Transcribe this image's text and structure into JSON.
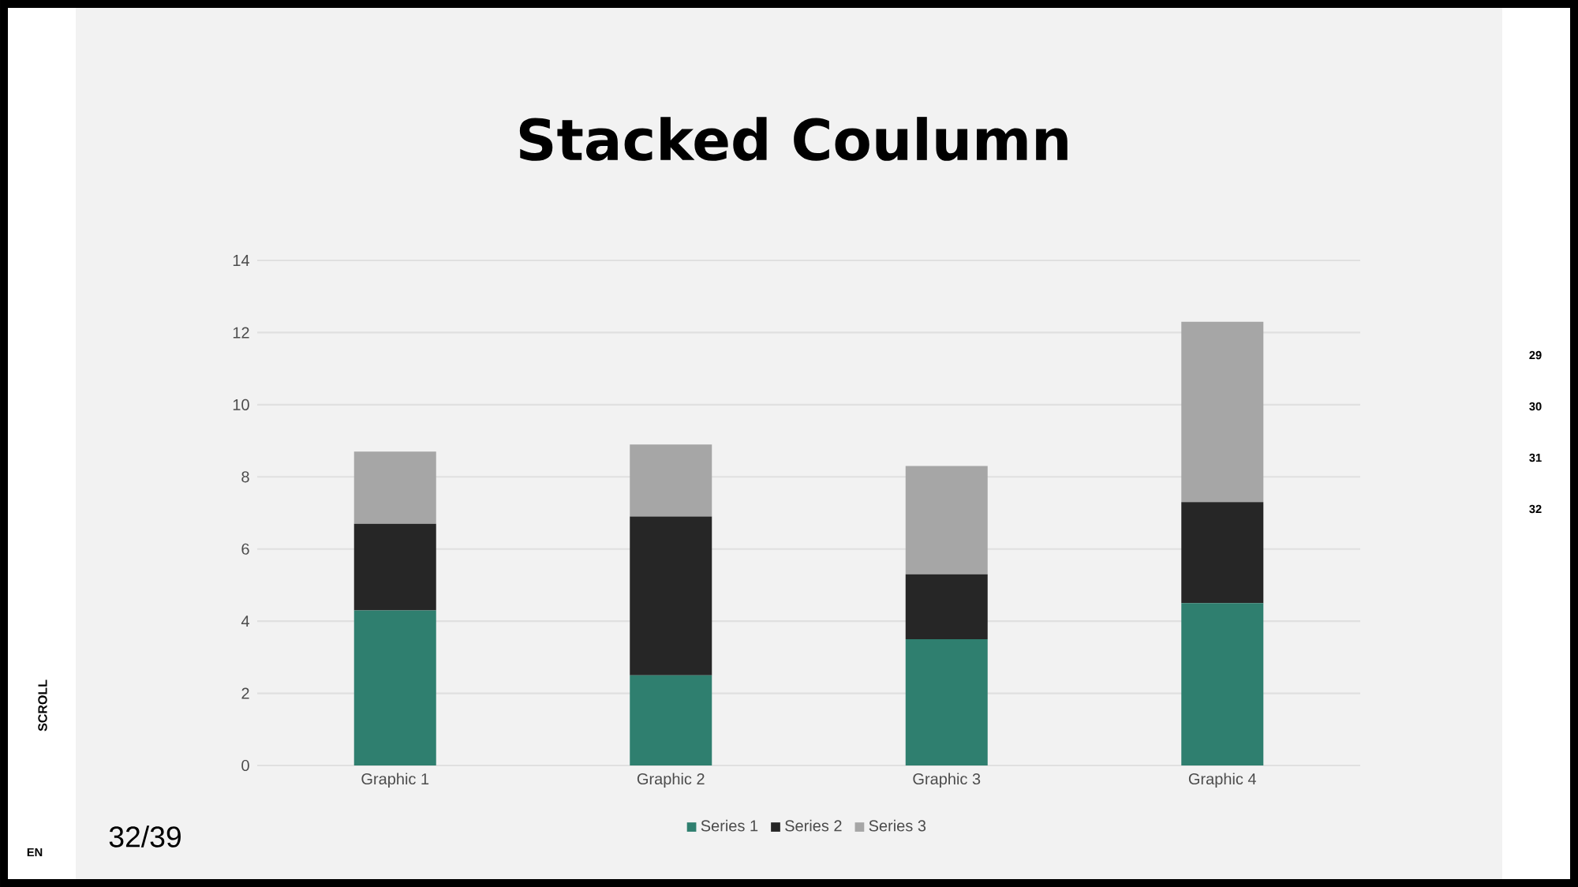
{
  "chart_data": {
    "type": "bar",
    "title": "Stacked Coulumn",
    "stacked": true,
    "categories": [
      "Graphic 1",
      "Graphic 2",
      "Graphic 3",
      "Graphic 4"
    ],
    "series": [
      {
        "name": "Series 1",
        "color": "#2f7f6f",
        "values": [
          4.3,
          2.5,
          3.5,
          4.5
        ]
      },
      {
        "name": "Series 2",
        "color": "#262626",
        "values": [
          2.4,
          4.4,
          1.8,
          2.8
        ]
      },
      {
        "name": "Series 3",
        "color": "#a6a6a6",
        "values": [
          2,
          2,
          3,
          5
        ]
      }
    ],
    "ylim": [
      0,
      14
    ],
    "yticks": [
      0,
      2,
      4,
      6,
      8,
      10,
      12,
      14
    ],
    "grid": "y",
    "legend": "bottom",
    "annotations": [
      "32/39",
      "SCROLL",
      "EN",
      "29",
      "30",
      "31",
      "32"
    ]
  }
}
